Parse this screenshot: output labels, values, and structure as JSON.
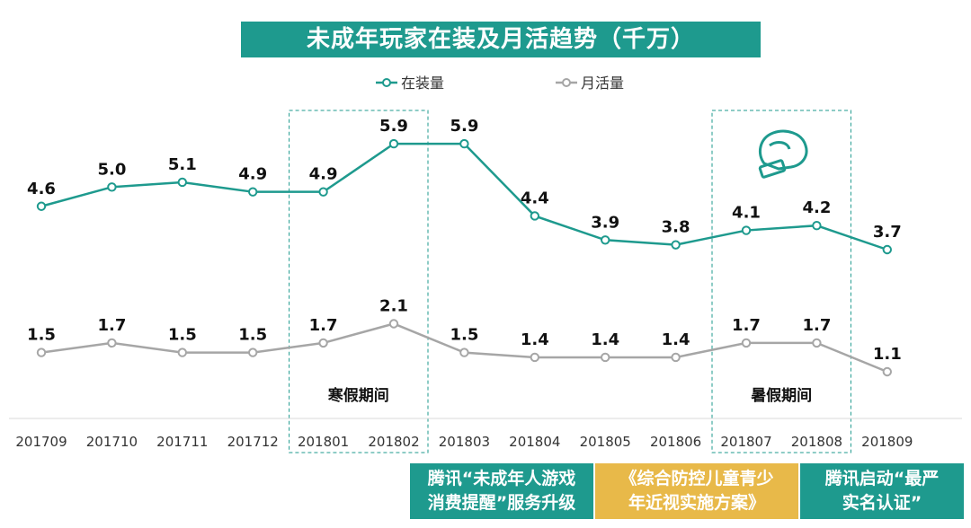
{
  "chart_data": {
    "type": "line",
    "title": "未成年玩家在装及月活趋势（千万）",
    "categories": [
      "201709",
      "201710",
      "201711",
      "201712",
      "201801",
      "201802",
      "201803",
      "201804",
      "201805",
      "201806",
      "201807",
      "201808",
      "201809"
    ],
    "series": [
      {
        "name": "在装量",
        "color": "#1e9a8e",
        "values": [
          4.6,
          5.0,
          5.1,
          4.9,
          4.9,
          5.9,
          5.9,
          4.4,
          3.9,
          3.8,
          4.1,
          4.2,
          3.7
        ]
      },
      {
        "name": "月活量",
        "color": "#a6a6a6",
        "values": [
          1.5,
          1.7,
          1.5,
          1.5,
          1.7,
          2.1,
          1.5,
          1.4,
          1.4,
          1.4,
          1.7,
          1.7,
          1.1
        ]
      }
    ],
    "labels": {
      "在装量": [
        "4.6",
        "5.0",
        "5.1",
        "4.9",
        "4.9",
        "5.9",
        "5.9",
        "4.4",
        "3.9",
        "3.8",
        "4.1",
        "4.2",
        "3.7"
      ],
      "月活量": [
        "1.5",
        "1.7",
        "1.5",
        "1.5",
        "1.7",
        "2.1",
        "1.5",
        "1.4",
        "1.4",
        "1.4",
        "1.7",
        "1.7",
        "1.1"
      ]
    },
    "highlights": [
      {
        "label": "寒假期间",
        "from": "201801",
        "to": "201802"
      },
      {
        "label": "暑假期间",
        "from": "201807",
        "to": "201808"
      }
    ],
    "legend_position": "top-center",
    "grid": false,
    "xlabel": "",
    "ylabel": ""
  },
  "colors": {
    "teal": "#1e9a8e",
    "grey": "#a6a6a6",
    "gold": "#e8b949"
  },
  "icons": {
    "boxing_glove": "boxing-glove-icon"
  },
  "notes": [
    {
      "line1": "腾讯“未成年人游戏",
      "line2": "消费提醒”服务升级"
    },
    {
      "line1": "《综合防控儿童青少",
      "line2": "年近视实施方案》"
    },
    {
      "line1": "腾讯启动“最严",
      "line2": "实名认证”"
    }
  ]
}
